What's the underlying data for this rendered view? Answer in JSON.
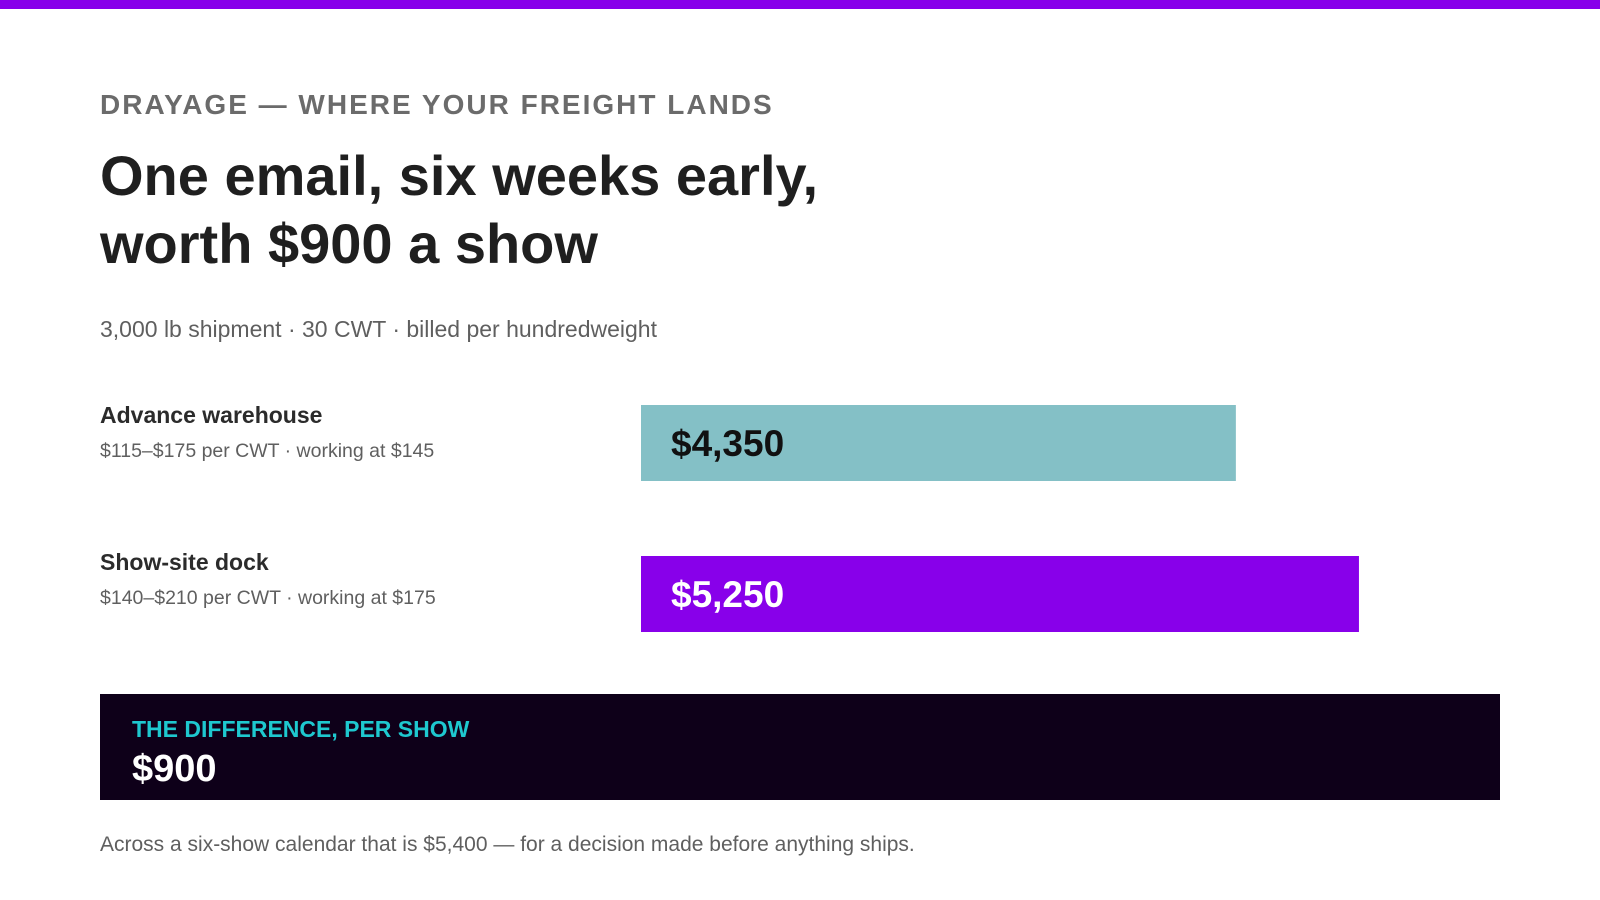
{
  "colors": {
    "accent": "#8800ea",
    "warehouse_bar": "#84c0c6",
    "show_site_bar": "#8800ea",
    "panel_bg": "#0e0019",
    "panel_label": "#1ec8cf",
    "text_dark": "#1f1f1f",
    "text_muted": "#5f5f5f"
  },
  "header": {
    "eyebrow": "DRAYAGE — WHERE YOUR FREIGHT LANDS",
    "headline_line1": "One email, six weeks early,",
    "headline_line2": "worth $900 a show",
    "subtitle": "3,000 lb shipment · 30 CWT · billed per hundredweight"
  },
  "chart_data": {
    "type": "bar",
    "orientation": "horizontal",
    "categories": [
      "Advance warehouse",
      "Show-site dock"
    ],
    "category_details": [
      "$115–$175 per CWT · working at $145",
      "$140–$210 per CWT · working at $175"
    ],
    "values": [
      4350,
      5250
    ],
    "value_labels": [
      "$4,350",
      "$5,250"
    ],
    "xlim": [
      0,
      5850
    ],
    "grid": false,
    "legend": "none"
  },
  "difference": {
    "label": "THE DIFFERENCE, PER SHOW",
    "value": "$900"
  },
  "footnote": "Across a six-show calendar that is $5,400 — for a decision made before anything ships."
}
